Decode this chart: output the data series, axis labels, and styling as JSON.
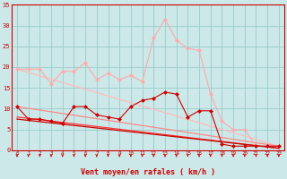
{
  "background_color": "#cce8e8",
  "grid_color": "#99cccc",
  "xlabel": "Vent moyen/en rafales ( km/h )",
  "xlabel_color": "#cc0000",
  "tick_color": "#cc0000",
  "xlim": [
    -0.5,
    23.5
  ],
  "ylim": [
    0,
    35
  ],
  "yticks": [
    0,
    5,
    10,
    15,
    20,
    25,
    30,
    35
  ],
  "xticks": [
    0,
    1,
    2,
    3,
    4,
    5,
    6,
    7,
    8,
    9,
    10,
    11,
    12,
    13,
    14,
    15,
    16,
    17,
    18,
    19,
    20,
    21,
    22,
    23
  ],
  "line1_x": [
    0,
    1,
    2,
    3,
    4,
    5,
    6,
    7,
    8,
    9,
    10,
    11,
    12,
    13,
    14,
    15,
    16,
    17,
    18,
    19,
    20,
    21,
    22,
    23
  ],
  "line1_y": [
    19.5,
    19.5,
    19.5,
    16.0,
    19.0,
    19.0,
    21.0,
    17.0,
    18.5,
    17.0,
    18.0,
    16.5,
    27.0,
    31.5,
    26.5,
    24.5,
    24.0,
    13.5,
    7.0,
    5.0,
    5.0,
    1.0,
    1.0,
    1.0
  ],
  "line1_color": "#ffaaaa",
  "line1_marker": "D",
  "line1_markersize": 2.5,
  "line2_x": [
    0,
    1,
    2,
    3,
    4,
    5,
    6,
    7,
    8,
    9,
    10,
    11,
    12,
    13,
    14,
    15,
    16,
    17,
    18,
    19,
    20,
    21,
    22,
    23
  ],
  "line2_y": [
    10.5,
    7.5,
    7.5,
    7.0,
    6.5,
    10.5,
    10.5,
    8.5,
    8.0,
    7.5,
    10.5,
    12.0,
    12.5,
    14.0,
    13.5,
    8.0,
    9.5,
    9.5,
    1.5,
    1.0,
    1.0,
    1.0,
    1.0,
    1.0
  ],
  "line2_color": "#cc0000",
  "line2_marker": "D",
  "line2_markersize": 2.5,
  "line3_x": [
    0,
    23
  ],
  "line3_y": [
    19.5,
    1.0
  ],
  "line3_color": "#ffbbbb",
  "line3_lw": 0.9,
  "line4_x": [
    0,
    23
  ],
  "line4_y": [
    10.5,
    1.0
  ],
  "line4_color": "#ff8888",
  "line4_lw": 0.9,
  "line5_x": [
    0,
    23
  ],
  "line5_y": [
    8.0,
    0.5
  ],
  "line5_color": "#ff3333",
  "line5_lw": 0.9,
  "line6_x": [
    0,
    23
  ],
  "line6_y": [
    7.5,
    0.5
  ],
  "line6_color": "#cc0000",
  "line6_lw": 0.9
}
